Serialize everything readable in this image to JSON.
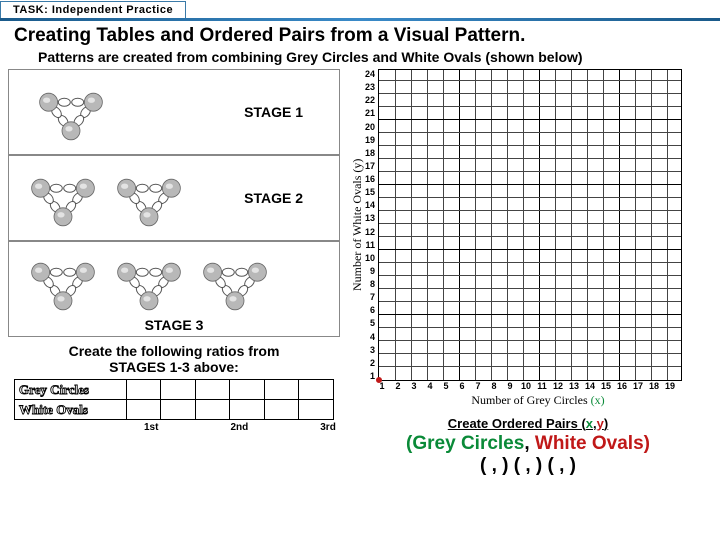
{
  "tab": "TASK: Independent  Practice",
  "title": "Creating Tables and Ordered Pairs from a Visual Pattern.",
  "subtitle": "Patterns are created from combining Grey Circles and White Ovals (shown below)",
  "stages": {
    "s1": "STAGE 1",
    "s2": "STAGE 2",
    "s3": "STAGE 3"
  },
  "ratio_prompt_l1": "Create the following ratios from",
  "ratio_prompt_l2": "STAGES 1-3 above:",
  "ratio_rows": {
    "r1": "Grey Circles",
    "r2": "White Ovals"
  },
  "ordinals": {
    "o1": "1st",
    "o2": "2nd",
    "o3": "3rd"
  },
  "graph": {
    "y_label": "Number of  White Ovals  (y)",
    "x_label_pre": "Number of Grey Circles ",
    "x_label_var": "(x)",
    "y_max": 24,
    "x_max": 19
  },
  "pairs": {
    "title_pre": "Create Ordered Pairs (",
    "title_x": "x",
    "title_mid": ",",
    "title_y": "y",
    "title_post": ")",
    "main_g": "(Grey Circles",
    "main_sep": ", ",
    "main_w": "White Ovals)",
    "tuples": "(    ,    ) (    ,    ) (    ,    )"
  },
  "colors": {
    "blue": "#1a5a8a",
    "green": "#0a8a38",
    "red": "#c01818",
    "grey_circle": "#b8b8b8",
    "white_oval": "#ffffff"
  },
  "pattern": {
    "unit_grey_r": 9,
    "unit_oval_rx": 6,
    "unit_oval_ry": 4,
    "stage1_units": 1,
    "stage2_units": 2,
    "stage3_units": 3
  }
}
